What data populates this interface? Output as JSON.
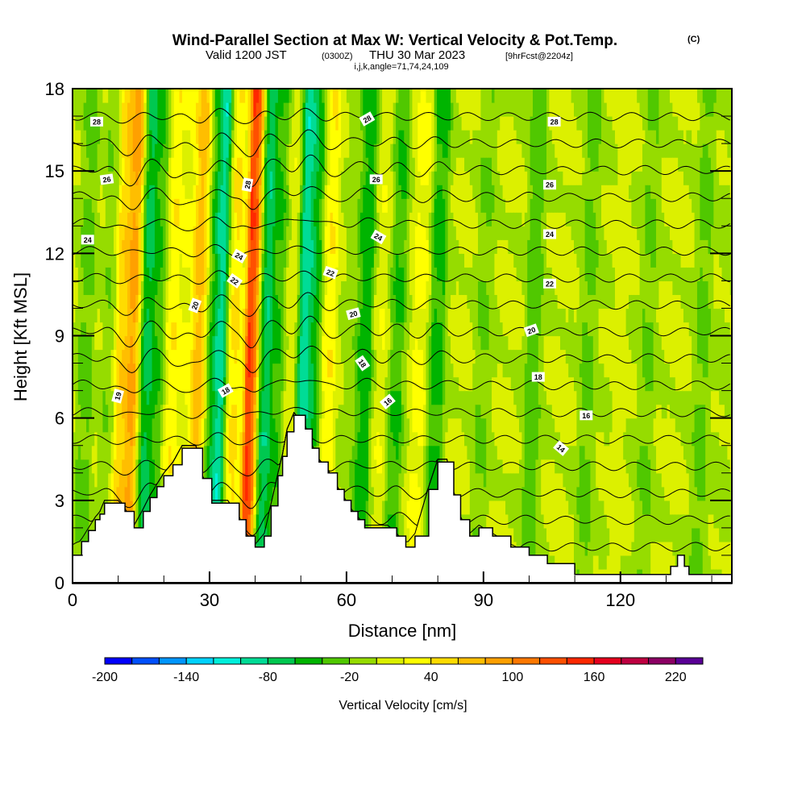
{
  "header": {
    "title": "Wind-Parallel Section at Max W: Vertical Velocity & Pot.Temp.",
    "copyright": "(C)",
    "valid_prefix": "Valid 1200 JST",
    "valid_utc": "(0300Z)",
    "valid_date": "THU 30 Mar 2023",
    "forecast": "[9hrFcst@2204z]",
    "indices": "i,j,k,angle=71,74,24,109"
  },
  "chart_data": {
    "type": "heatmap",
    "title": "Wind-Parallel Section at Max W: Vertical Velocity & Pot.Temp.",
    "xlabel": "Distance [nm]",
    "ylabel": "Height [Kft MSL]",
    "xlim": [
      0,
      144.4
    ],
    "ylim": [
      0,
      18
    ],
    "x_ticks": [
      0,
      30,
      60,
      90,
      120
    ],
    "x_tick_labels": [
      "0",
      "30",
      "60",
      "90",
      "120"
    ],
    "x_minor_step": 10,
    "y_ticks": [
      0,
      3,
      6,
      9,
      12,
      15,
      18
    ],
    "y_tick_labels": [
      "0",
      "3",
      "6",
      "9",
      "12",
      "15",
      "18"
    ],
    "y_minor_step": 1,
    "colorbar": {
      "title": "Vertical Velocity [cm/s]",
      "levels": [
        -200,
        -180,
        -160,
        -140,
        -120,
        -100,
        -80,
        -60,
        -40,
        -20,
        0,
        20,
        40,
        60,
        80,
        100,
        120,
        140,
        160,
        180,
        200,
        220,
        240
      ],
      "tick_labels": [
        "-200",
        "-140",
        "-80",
        "-20",
        "40",
        "100",
        "160",
        "220"
      ],
      "tick_values": [
        -200,
        -140,
        -80,
        -20,
        40,
        100,
        160,
        220
      ],
      "colors": [
        "#0000ff",
        "#0050ff",
        "#0096ff",
        "#00d2ff",
        "#00f0dc",
        "#00dc96",
        "#00c850",
        "#00b400",
        "#50c800",
        "#96dc00",
        "#dcf000",
        "#ffff00",
        "#ffdc00",
        "#ffbe00",
        "#ffa000",
        "#ff7800",
        "#ff5000",
        "#ff2800",
        "#e6001e",
        "#be0041",
        "#8c0064",
        "#5a0096"
      ]
    },
    "vertical_velocity_bands": [
      {
        "x": 3,
        "w": -25
      },
      {
        "x": 8,
        "w": -15
      },
      {
        "x": 11,
        "w": 55
      },
      {
        "x": 13.5,
        "w": 95
      },
      {
        "x": 16,
        "w": -70
      },
      {
        "x": 19,
        "w": -40
      },
      {
        "x": 21.5,
        "w": 35
      },
      {
        "x": 25,
        "w": 20
      },
      {
        "x": 28,
        "w": 75
      },
      {
        "x": 30.5,
        "w": -40
      },
      {
        "x": 32.5,
        "w": -110
      },
      {
        "x": 35,
        "w": 45
      },
      {
        "x": 39.5,
        "w": 140
      },
      {
        "x": 42,
        "w": -80
      },
      {
        "x": 45,
        "w": -40
      },
      {
        "x": 48,
        "w": 15
      },
      {
        "x": 51,
        "w": -100
      },
      {
        "x": 53,
        "w": -50
      },
      {
        "x": 56,
        "w": 35
      },
      {
        "x": 61,
        "w": -10
      },
      {
        "x": 64,
        "w": -50
      },
      {
        "x": 68,
        "w": 15
      },
      {
        "x": 71,
        "w": -40
      },
      {
        "x": 76,
        "w": 25
      },
      {
        "x": 80,
        "w": -45
      },
      {
        "x": 85,
        "w": 5
      },
      {
        "x": 90,
        "w": -25
      },
      {
        "x": 95,
        "w": 5
      },
      {
        "x": 101,
        "w": -40
      },
      {
        "x": 107,
        "w": 5
      },
      {
        "x": 113,
        "w": -30
      },
      {
        "x": 120,
        "w": 10
      },
      {
        "x": 126,
        "w": -25
      },
      {
        "x": 132,
        "w": 5
      },
      {
        "x": 138,
        "w": -30
      },
      {
        "x": 143,
        "w": -5
      }
    ],
    "terrain_kft": [
      {
        "x": 0,
        "h": 1.0
      },
      {
        "x": 2,
        "h": 1.5
      },
      {
        "x": 3.5,
        "h": 1.9
      },
      {
        "x": 5,
        "h": 2.3
      },
      {
        "x": 6,
        "h": 2.5
      },
      {
        "x": 7,
        "h": 2.9
      },
      {
        "x": 10,
        "h": 2.9
      },
      {
        "x": 11.5,
        "h": 2.6
      },
      {
        "x": 13.5,
        "h": 2.0
      },
      {
        "x": 15.5,
        "h": 2.6
      },
      {
        "x": 17,
        "h": 3.1
      },
      {
        "x": 18.5,
        "h": 3.5
      },
      {
        "x": 20,
        "h": 3.9
      },
      {
        "x": 22,
        "h": 4.3
      },
      {
        "x": 24,
        "h": 4.9
      },
      {
        "x": 27,
        "h": 4.9
      },
      {
        "x": 28.5,
        "h": 3.8
      },
      {
        "x": 30.5,
        "h": 2.9
      },
      {
        "x": 34,
        "h": 2.9
      },
      {
        "x": 36.5,
        "h": 2.3
      },
      {
        "x": 38,
        "h": 1.7
      },
      {
        "x": 40,
        "h": 1.3
      },
      {
        "x": 42,
        "h": 1.7
      },
      {
        "x": 43.5,
        "h": 2.8
      },
      {
        "x": 45,
        "h": 3.9
      },
      {
        "x": 46,
        "h": 4.6
      },
      {
        "x": 47,
        "h": 5.5
      },
      {
        "x": 48.5,
        "h": 6.1
      },
      {
        "x": 51,
        "h": 5.6
      },
      {
        "x": 52.5,
        "h": 4.9
      },
      {
        "x": 54,
        "h": 4.4
      },
      {
        "x": 56,
        "h": 4.0
      },
      {
        "x": 58,
        "h": 3.4
      },
      {
        "x": 59.5,
        "h": 3.0
      },
      {
        "x": 61,
        "h": 2.6
      },
      {
        "x": 62.5,
        "h": 2.3
      },
      {
        "x": 64,
        "h": 2.0
      },
      {
        "x": 69,
        "h": 2.0
      },
      {
        "x": 71,
        "h": 1.7
      },
      {
        "x": 73,
        "h": 1.3
      },
      {
        "x": 75,
        "h": 1.7
      },
      {
        "x": 78,
        "h": 3.4
      },
      {
        "x": 80,
        "h": 4.4
      },
      {
        "x": 82,
        "h": 4.4
      },
      {
        "x": 83.5,
        "h": 3.2
      },
      {
        "x": 85,
        "h": 2.3
      },
      {
        "x": 87,
        "h": 1.7
      },
      {
        "x": 89,
        "h": 2.0
      },
      {
        "x": 92,
        "h": 1.7
      },
      {
        "x": 96,
        "h": 1.3
      },
      {
        "x": 100,
        "h": 1.0
      },
      {
        "x": 104,
        "h": 0.7
      },
      {
        "x": 110,
        "h": 0.3
      },
      {
        "x": 130,
        "h": 0.3
      },
      {
        "x": 131,
        "h": 0.6
      },
      {
        "x": 132.5,
        "h": 1.0
      },
      {
        "x": 134,
        "h": 0.6
      },
      {
        "x": 135,
        "h": 0.3
      },
      {
        "x": 144.4,
        "h": 0.3
      }
    ],
    "isentropes": {
      "name": "Pot.Temp.",
      "levels": [
        13,
        14,
        15,
        16,
        17,
        18,
        19,
        20,
        21,
        22,
        23,
        24,
        25,
        26,
        27,
        28,
        29
      ],
      "labels": [
        {
          "text": "28",
          "x": 5.3,
          "y": 16.8,
          "angle": 0
        },
        {
          "text": "26",
          "x": 7.5,
          "y": 14.7,
          "angle": -8
        },
        {
          "text": "24",
          "x": 3.3,
          "y": 12.5,
          "angle": 0
        },
        {
          "text": "28",
          "x": 38.3,
          "y": 14.5,
          "angle": -80
        },
        {
          "text": "24",
          "x": 36.5,
          "y": 11.9,
          "angle": 30
        },
        {
          "text": "22",
          "x": 35.5,
          "y": 11.0,
          "angle": 35
        },
        {
          "text": "20",
          "x": 26.8,
          "y": 10.1,
          "angle": -70
        },
        {
          "text": "19",
          "x": 9.9,
          "y": 6.8,
          "angle": -75
        },
        {
          "text": "18",
          "x": 33.5,
          "y": 7.0,
          "angle": -30
        },
        {
          "text": "28",
          "x": 64.5,
          "y": 16.9,
          "angle": -30
        },
        {
          "text": "26",
          "x": 66.5,
          "y": 14.7,
          "angle": 0
        },
        {
          "text": "24",
          "x": 67.0,
          "y": 12.6,
          "angle": 30
        },
        {
          "text": "22",
          "x": 56.5,
          "y": 11.3,
          "angle": 20
        },
        {
          "text": "20",
          "x": 61.5,
          "y": 9.8,
          "angle": -15
        },
        {
          "text": "18",
          "x": 63.5,
          "y": 8.0,
          "angle": 55
        },
        {
          "text": "16",
          "x": 69.0,
          "y": 6.6,
          "angle": -40
        },
        {
          "text": "28",
          "x": 105.5,
          "y": 16.8,
          "angle": 0
        },
        {
          "text": "26",
          "x": 104.5,
          "y": 14.5,
          "angle": 0
        },
        {
          "text": "24",
          "x": 104.5,
          "y": 12.7,
          "angle": 0
        },
        {
          "text": "22",
          "x": 104.5,
          "y": 10.9,
          "angle": 0
        },
        {
          "text": "20",
          "x": 100.5,
          "y": 9.2,
          "angle": -20
        },
        {
          "text": "18",
          "x": 102.0,
          "y": 7.5,
          "angle": 0
        },
        {
          "text": "16",
          "x": 112.5,
          "y": 6.1,
          "angle": 0
        },
        {
          "text": "14",
          "x": 107.0,
          "y": 4.9,
          "angle": 40
        }
      ]
    }
  }
}
